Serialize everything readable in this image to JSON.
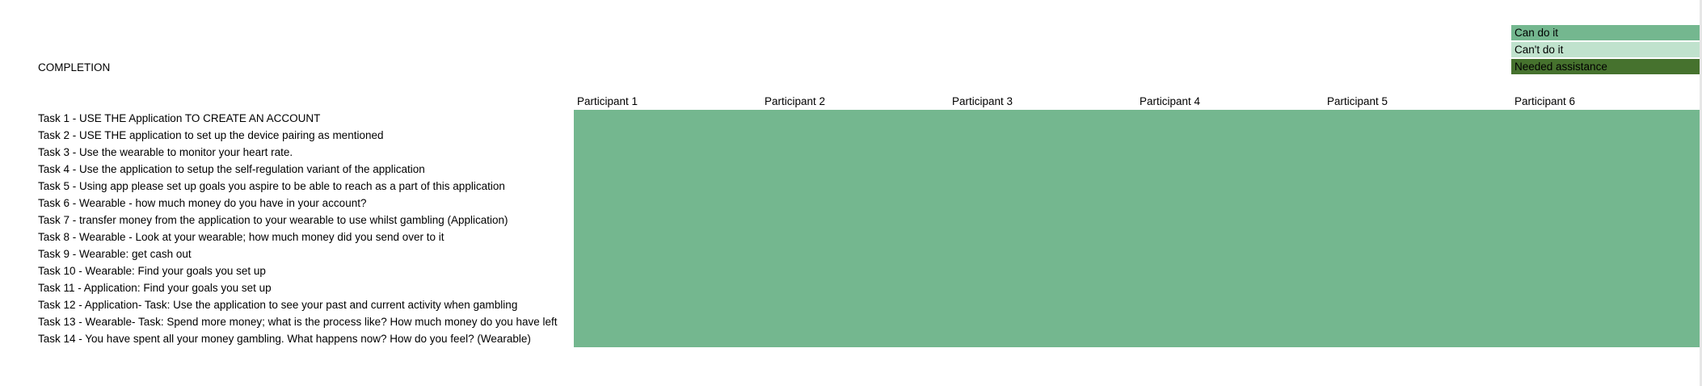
{
  "title": "COMPLETION",
  "legend": [
    {
      "label": "Can do it",
      "color": "#74b78f"
    },
    {
      "label": "Can't do it",
      "color": "#c0e2cd"
    },
    {
      "label": "Needed assistance",
      "color": "#46722e"
    }
  ],
  "participants": [
    "Participant 1",
    "Participant 2",
    "Participant 3",
    "Participant 4",
    "Participant 5",
    "Participant 6"
  ],
  "tasks": [
    "Task 1 - USE THE Application TO CREATE AN ACCOUNT",
    "Task 2 - USE THE application to set up the device pairing as mentioned",
    "Task 3 - Use the wearable to monitor your heart rate.",
    "Task 4 - Use the application to setup the self-regulation variant of the application",
    "Task 5 - Using app please set up goals you aspire to be able to reach as a part of this application",
    "Task 6 - Wearable - how much money do you have in your account?",
    "Task 7 - transfer money from the application to your wearable to use whilst gambling (Application)",
    "Task 8 - Wearable - Look at your wearable; how much money did you send over to it",
    "Task 9 - Wearable: get cash out",
    "Task 10 - Wearable: Find your goals you set up",
    "Task 11 - Application: Find your goals you set up",
    "Task 12 - Application- Task: Use the application to see your past and current activity when gambling",
    "Task 13 - Wearable- Task: Spend more money; what is the process like? How much money do you have left",
    "Task 14 - You have spent all your money gambling. What happens now? How do you feel? (Wearable)"
  ],
  "results": [
    [
      "Can do it",
      "Can do it",
      "Can do it",
      "Can do it",
      "Can do it",
      "Can do it"
    ],
    [
      "Can do it",
      "Can do it",
      "Can do it",
      "Can do it",
      "Can do it",
      "Can do it"
    ],
    [
      "Can do it",
      "Can do it",
      "Can do it",
      "Can do it",
      "Can do it",
      "Can do it"
    ],
    [
      "Can do it",
      "Can do it",
      "Can do it",
      "Can do it",
      "Can do it",
      "Can do it"
    ],
    [
      "Can do it",
      "Can do it",
      "Can do it",
      "Can do it",
      "Can do it",
      "Can do it"
    ],
    [
      "Can do it",
      "Can do it",
      "Can do it",
      "Can do it",
      "Can do it",
      "Can do it"
    ],
    [
      "Can do it",
      "Can do it",
      "Can do it",
      "Can do it",
      "Can do it",
      "Can do it"
    ],
    [
      "Can do it",
      "Can do it",
      "Can do it",
      "Can do it",
      "Can do it",
      "Can do it"
    ],
    [
      "Can do it",
      "Can do it",
      "Can do it",
      "Can do it",
      "Can do it",
      "Can do it"
    ],
    [
      "Can do it",
      "Can do it",
      "Can do it",
      "Can do it",
      "Can do it",
      "Can do it"
    ],
    [
      "Can do it",
      "Can do it",
      "Can do it",
      "Can do it",
      "Can do it",
      "Can do it"
    ],
    [
      "Can do it",
      "Can do it",
      "Can do it",
      "Can do it",
      "Can do it",
      "Can do it"
    ],
    [
      "Can do it",
      "Can do it",
      "Can do it",
      "Can do it",
      "Can do it",
      "Can do it"
    ],
    [
      "Can do it",
      "Can do it",
      "Can do it",
      "Can do it",
      "Can do it",
      "Can do it"
    ]
  ]
}
